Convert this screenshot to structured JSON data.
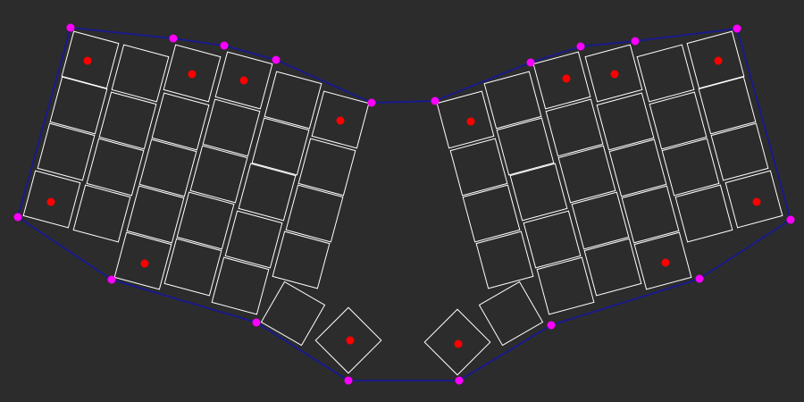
{
  "colors": {
    "background": "#2c2c2c",
    "key_outline": "#ffffff",
    "outline": "#1a1a8a",
    "vertex": "#ff00ff",
    "marker": "#ff0000"
  }
}
